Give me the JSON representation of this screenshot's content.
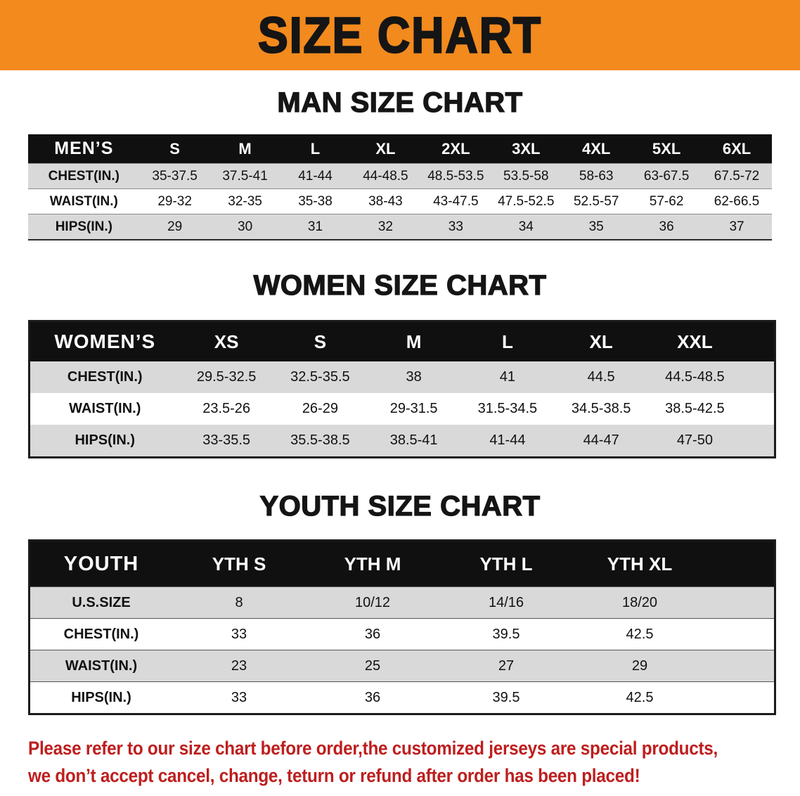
{
  "banner": {
    "title": "SIZE CHART",
    "bg_color": "#F28A1E"
  },
  "colors": {
    "stripe": "#D9D9D9",
    "header_bg": "#101010"
  },
  "sections": [
    {
      "heading": "MAN SIZE CHART",
      "table": {
        "name": "men",
        "header": [
          "MEN’S",
          "S",
          "M",
          "L",
          "XL",
          "2XL",
          "3XL",
          "4XL",
          "5XL",
          "6XL"
        ],
        "rows": [
          [
            "CHEST(IN.)",
            "35-37.5",
            "37.5-41",
            "41-44",
            "44-48.5",
            "48.5-53.5",
            "53.5-58",
            "58-63",
            "63-67.5",
            "67.5-72"
          ],
          [
            "WAIST(IN.)",
            "29-32",
            "32-35",
            "35-38",
            "38-43",
            "43-47.5",
            "47.5-52.5",
            "52.5-57",
            "57-62",
            "62-66.5"
          ],
          [
            "HIPS(IN.)",
            "29",
            "30",
            "31",
            "32",
            "33",
            "34",
            "35",
            "36",
            "37"
          ]
        ]
      }
    },
    {
      "heading": "WOMEN SIZE CHART",
      "table": {
        "name": "women",
        "header": [
          "WOMEN’S",
          "XS",
          "S",
          "M",
          "L",
          "XL",
          "XXL"
        ],
        "rows": [
          [
            "CHEST(IN.)",
            "29.5-32.5",
            "32.5-35.5",
            "38",
            "41",
            "44.5",
            "44.5-48.5"
          ],
          [
            "WAIST(IN.)",
            "23.5-26",
            "26-29",
            "29-31.5",
            "31.5-34.5",
            "34.5-38.5",
            "38.5-42.5"
          ],
          [
            "HIPS(IN.)",
            "33-35.5",
            "35.5-38.5",
            "38.5-41",
            "41-44",
            "44-47",
            "47-50"
          ]
        ]
      }
    },
    {
      "heading": "YOUTH SIZE CHART",
      "table": {
        "name": "youth",
        "header": [
          "YOUTH",
          "YTH S",
          "YTH M",
          "YTH L",
          "YTH XL"
        ],
        "rows": [
          [
            "U.S.SIZE",
            "8",
            "10/12",
            "14/16",
            "18/20"
          ],
          [
            "CHEST(IN.)",
            "33",
            "36",
            "39.5",
            "42.5"
          ],
          [
            "WAIST(IN.)",
            "23",
            "25",
            "27",
            "29"
          ],
          [
            "HIPS(IN.)",
            "33",
            "36",
            "39.5",
            "42.5"
          ]
        ]
      }
    }
  ],
  "footer": {
    "line1": "Please refer to our size chart before order,the customized jerseys are special products,",
    "line2": "we don’t accept cancel, change, teturn or refund after order has been placed!",
    "text_color": "#BE1E1E"
  }
}
